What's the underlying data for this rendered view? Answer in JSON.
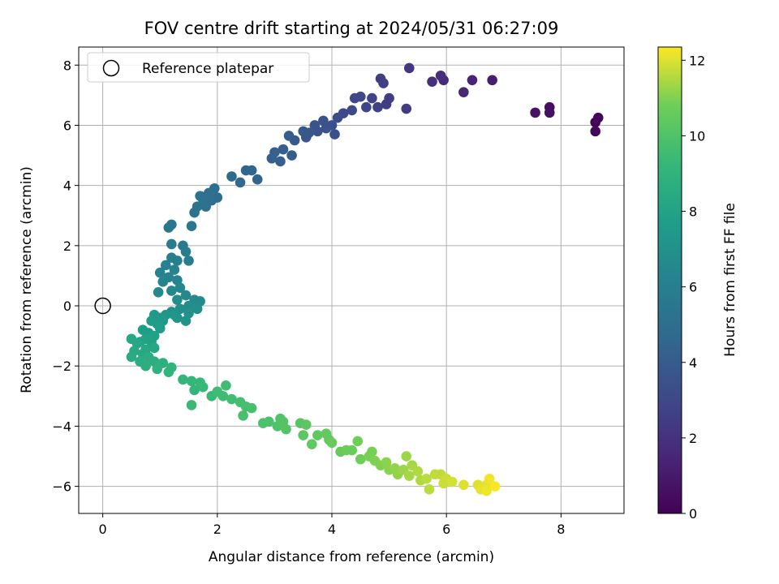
{
  "chart_data": {
    "type": "scatter",
    "title": "FOV centre drift starting at 2024/05/31 06:27:09",
    "xlabel": "Angular distance from reference (arcmin)",
    "ylabel": "Rotation from reference (arcmin)",
    "xlim": [
      -0.42,
      9.1
    ],
    "ylim": [
      -6.9,
      8.6
    ],
    "xticks": [
      0,
      2,
      4,
      6,
      8
    ],
    "yticks": [
      -6,
      -4,
      -2,
      0,
      2,
      4,
      6,
      8
    ],
    "grid": true,
    "legend": {
      "location": "upper-left",
      "entries": [
        "Reference platepar"
      ]
    },
    "reference_point": {
      "x": 0,
      "y": 0,
      "label": "Reference platepar"
    },
    "colorbar": {
      "label": "Hours from first FF file",
      "colormap": "viridis",
      "min": 0,
      "max": 12.35,
      "ticks": [
        0,
        2,
        4,
        6,
        8,
        10,
        12
      ]
    },
    "series": [
      {
        "points": [
          [
            8.6,
            6.1,
            0.1
          ],
          [
            8.65,
            6.25,
            0.2
          ],
          [
            8.6,
            5.8,
            0.3
          ],
          [
            7.8,
            6.6,
            0.5
          ],
          [
            7.8,
            6.42,
            0.6
          ],
          [
            7.55,
            6.42,
            0.7
          ],
          [
            6.8,
            7.5,
            1.2
          ],
          [
            6.45,
            7.5,
            1.4
          ],
          [
            6.3,
            7.1,
            1.5
          ],
          [
            5.95,
            7.5,
            1.7
          ],
          [
            5.9,
            7.65,
            1.8
          ],
          [
            5.75,
            7.45,
            1.9
          ],
          [
            5.35,
            7.9,
            2.2
          ],
          [
            5.3,
            6.55,
            2.4
          ],
          [
            5.0,
            6.9,
            2.5
          ],
          [
            4.95,
            6.7,
            2.5
          ],
          [
            4.85,
            7.55,
            2.6
          ],
          [
            4.9,
            7.4,
            2.6
          ],
          [
            4.8,
            6.6,
            2.7
          ],
          [
            4.7,
            6.9,
            2.8
          ],
          [
            4.6,
            6.6,
            2.9
          ],
          [
            4.5,
            6.95,
            3.0
          ],
          [
            4.4,
            6.9,
            3.0
          ],
          [
            4.35,
            6.5,
            3.1
          ],
          [
            4.2,
            6.4,
            3.2
          ],
          [
            4.1,
            6.25,
            3.3
          ],
          [
            4.05,
            5.7,
            3.4
          ],
          [
            4.0,
            6.0,
            3.4
          ],
          [
            3.9,
            5.9,
            3.5
          ],
          [
            3.85,
            6.15,
            3.5
          ],
          [
            3.75,
            5.8,
            3.6
          ],
          [
            3.7,
            6.0,
            3.6
          ],
          [
            3.6,
            5.75,
            3.7
          ],
          [
            3.55,
            5.6,
            3.7
          ],
          [
            3.5,
            5.8,
            3.8
          ],
          [
            3.35,
            5.5,
            3.9
          ],
          [
            3.3,
            5.0,
            4.0
          ],
          [
            3.25,
            5.65,
            4.0
          ],
          [
            3.15,
            5.2,
            4.1
          ],
          [
            3.1,
            4.8,
            4.2
          ],
          [
            3.0,
            5.1,
            4.3
          ],
          [
            2.95,
            4.9,
            4.3
          ],
          [
            2.7,
            4.2,
            4.5
          ],
          [
            2.6,
            4.5,
            4.6
          ],
          [
            2.5,
            4.5,
            4.6
          ],
          [
            2.4,
            4.1,
            4.7
          ],
          [
            2.25,
            4.3,
            4.8
          ],
          [
            2.0,
            3.6,
            4.9
          ],
          [
            1.95,
            3.9,
            5.0
          ],
          [
            1.9,
            3.5,
            5.0
          ],
          [
            1.85,
            3.75,
            5.1
          ],
          [
            1.8,
            3.3,
            5.1
          ],
          [
            1.75,
            3.55,
            5.2
          ],
          [
            1.7,
            3.65,
            5.2
          ],
          [
            1.65,
            3.3,
            5.3
          ],
          [
            1.6,
            3.1,
            5.3
          ],
          [
            1.55,
            2.65,
            5.5
          ],
          [
            1.2,
            2.7,
            5.6
          ],
          [
            1.15,
            2.6,
            5.6
          ],
          [
            1.4,
            2.0,
            5.7
          ],
          [
            1.45,
            1.8,
            5.8
          ],
          [
            1.2,
            2.05,
            5.8
          ],
          [
            1.5,
            1.5,
            5.9
          ],
          [
            1.3,
            1.5,
            6.0
          ],
          [
            1.2,
            1.6,
            6.0
          ],
          [
            1.1,
            1.35,
            6.1
          ],
          [
            1.25,
            1.2,
            6.1
          ],
          [
            1.0,
            1.1,
            6.2
          ],
          [
            1.15,
            0.95,
            6.2
          ],
          [
            1.3,
            0.85,
            6.3
          ],
          [
            1.05,
            0.8,
            6.3
          ],
          [
            1.35,
            0.6,
            6.4
          ],
          [
            1.2,
            0.5,
            6.4
          ],
          [
            0.97,
            0.45,
            6.5
          ],
          [
            1.45,
            0.35,
            6.5
          ],
          [
            1.6,
            0.2,
            6.6
          ],
          [
            1.7,
            0.15,
            6.6
          ],
          [
            1.3,
            0.2,
            6.7
          ],
          [
            1.5,
            0.0,
            6.8
          ],
          [
            1.65,
            -0.1,
            6.9
          ],
          [
            1.35,
            -0.1,
            6.9
          ],
          [
            1.2,
            -0.2,
            7.0
          ],
          [
            1.5,
            -0.25,
            7.0
          ],
          [
            1.3,
            -0.4,
            7.1
          ],
          [
            1.45,
            -0.5,
            7.1
          ],
          [
            1.1,
            -0.3,
            7.2
          ],
          [
            1.0,
            -0.4,
            7.3
          ],
          [
            1.25,
            -0.3,
            7.3
          ],
          [
            0.9,
            -0.3,
            7.4
          ],
          [
            1.05,
            -0.5,
            7.5
          ],
          [
            0.85,
            -0.5,
            7.6
          ],
          [
            0.95,
            -0.6,
            7.6
          ],
          [
            1.0,
            -0.75,
            7.7
          ],
          [
            0.8,
            -0.9,
            7.8
          ],
          [
            0.7,
            -0.8,
            7.8
          ],
          [
            0.9,
            -1.0,
            7.9
          ],
          [
            0.85,
            -1.2,
            8.0
          ],
          [
            0.75,
            -1.1,
            8.0
          ],
          [
            0.65,
            -1.2,
            8.1
          ],
          [
            0.5,
            -1.1,
            8.2
          ],
          [
            0.6,
            -1.25,
            8.2
          ],
          [
            0.9,
            -1.4,
            8.3
          ],
          [
            0.75,
            -1.45,
            8.3
          ],
          [
            0.55,
            -1.5,
            8.4
          ],
          [
            0.7,
            -1.6,
            8.4
          ],
          [
            0.5,
            -1.7,
            8.5
          ],
          [
            0.8,
            -1.7,
            8.6
          ],
          [
            0.65,
            -1.85,
            8.6
          ],
          [
            0.9,
            -1.85,
            8.7
          ],
          [
            0.75,
            -2.0,
            8.7
          ],
          [
            1.05,
            -1.9,
            8.8
          ],
          [
            0.95,
            -2.1,
            8.9
          ],
          [
            1.2,
            -2.05,
            9.0
          ],
          [
            1.15,
            -2.2,
            9.0
          ],
          [
            1.4,
            -2.45,
            9.1
          ],
          [
            1.55,
            -2.5,
            9.2
          ],
          [
            1.6,
            -2.8,
            9.2
          ],
          [
            1.7,
            -2.55,
            9.3
          ],
          [
            1.75,
            -2.7,
            9.3
          ],
          [
            1.55,
            -3.3,
            9.4
          ],
          [
            1.9,
            -3.0,
            9.4
          ],
          [
            2.0,
            -2.85,
            9.5
          ],
          [
            2.1,
            -3.0,
            9.5
          ],
          [
            2.15,
            -2.65,
            9.6
          ],
          [
            2.25,
            -3.1,
            9.6
          ],
          [
            2.4,
            -3.2,
            9.7
          ],
          [
            2.5,
            -3.35,
            9.7
          ],
          [
            2.45,
            -3.65,
            9.8
          ],
          [
            2.6,
            -3.4,
            9.8
          ],
          [
            2.8,
            -3.9,
            9.9
          ],
          [
            2.9,
            -3.85,
            9.9
          ],
          [
            3.05,
            -4.0,
            10.0
          ],
          [
            3.1,
            -3.75,
            10.0
          ],
          [
            3.2,
            -4.1,
            10.1
          ],
          [
            3.15,
            -3.85,
            10.1
          ],
          [
            3.45,
            -3.9,
            10.2
          ],
          [
            3.5,
            -4.3,
            10.3
          ],
          [
            3.55,
            -3.95,
            10.3
          ],
          [
            3.65,
            -4.6,
            10.4
          ],
          [
            3.75,
            -4.3,
            10.4
          ],
          [
            3.9,
            -4.25,
            10.5
          ],
          [
            3.95,
            -4.45,
            10.5
          ],
          [
            4.0,
            -4.55,
            10.6
          ],
          [
            4.15,
            -4.85,
            10.6
          ],
          [
            4.25,
            -4.8,
            10.7
          ],
          [
            4.35,
            -4.8,
            10.7
          ],
          [
            4.45,
            -4.5,
            10.8
          ],
          [
            4.5,
            -5.1,
            10.8
          ],
          [
            4.65,
            -5.0,
            10.9
          ],
          [
            4.7,
            -4.85,
            10.9
          ],
          [
            4.75,
            -5.15,
            11.0
          ],
          [
            4.85,
            -5.3,
            11.0
          ],
          [
            4.95,
            -5.2,
            11.1
          ],
          [
            5.0,
            -5.45,
            11.1
          ],
          [
            5.1,
            -5.4,
            11.2
          ],
          [
            5.15,
            -5.6,
            11.2
          ],
          [
            5.25,
            -5.45,
            11.3
          ],
          [
            5.3,
            -5.0,
            11.3
          ],
          [
            5.35,
            -5.65,
            11.4
          ],
          [
            5.4,
            -5.3,
            11.4
          ],
          [
            5.5,
            -5.5,
            11.5
          ],
          [
            5.55,
            -5.8,
            11.5
          ],
          [
            5.65,
            -5.75,
            11.6
          ],
          [
            5.7,
            -6.1,
            11.6
          ],
          [
            5.8,
            -5.6,
            11.7
          ],
          [
            5.9,
            -5.6,
            11.7
          ],
          [
            5.95,
            -5.9,
            11.8
          ],
          [
            6.0,
            -5.75,
            11.8
          ],
          [
            6.1,
            -5.85,
            11.9
          ],
          [
            6.3,
            -5.95,
            12.0
          ],
          [
            6.55,
            -5.95,
            12.0
          ],
          [
            6.6,
            -6.1,
            12.1
          ],
          [
            6.7,
            -5.95,
            12.1
          ],
          [
            6.75,
            -5.75,
            12.2
          ],
          [
            6.7,
            -6.15,
            12.2
          ],
          [
            6.85,
            -6.0,
            12.3
          ]
        ]
      }
    ]
  }
}
